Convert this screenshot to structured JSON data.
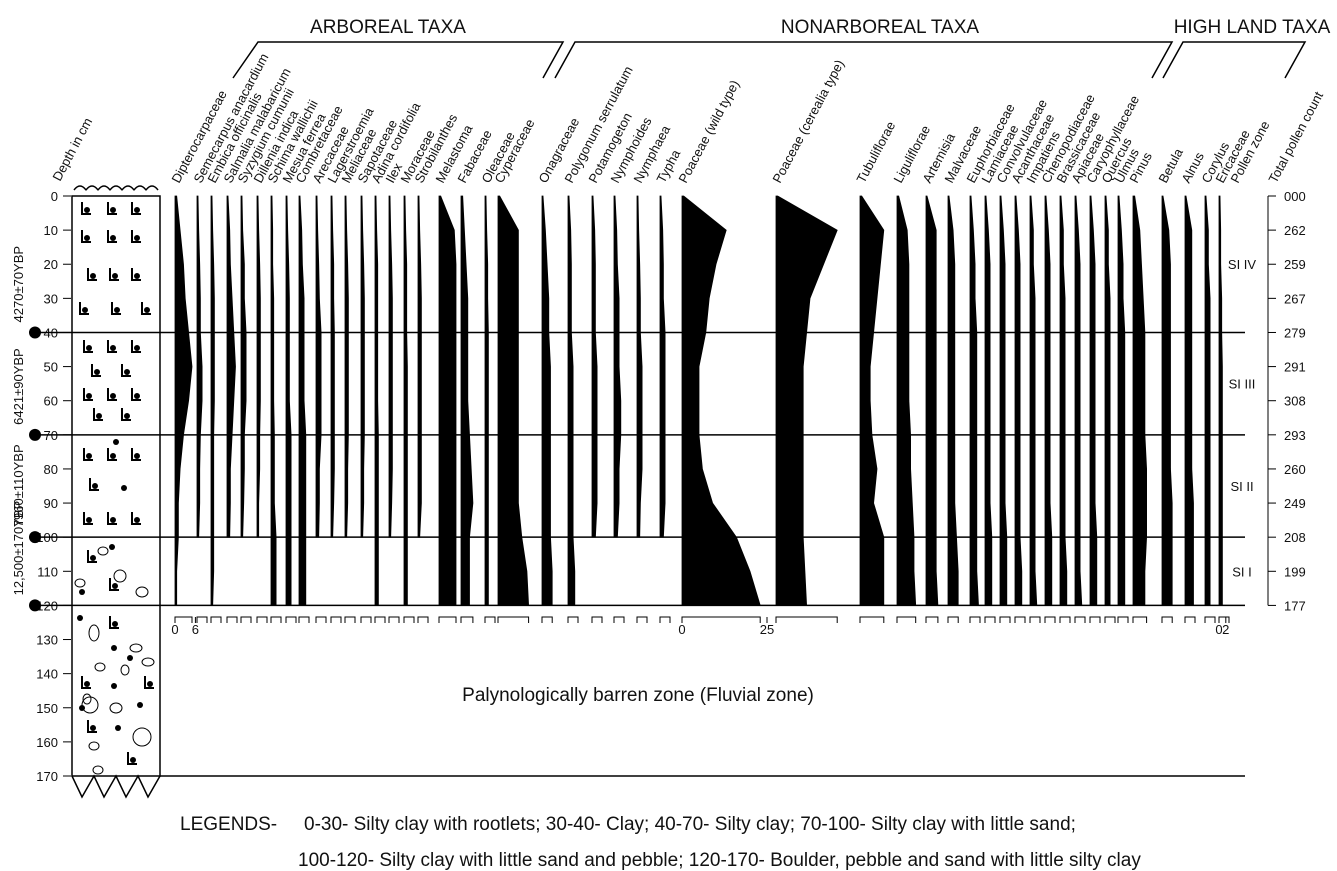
{
  "chart_data": {
    "type": "pollen",
    "y_label": "Depth in cm",
    "ylim": [
      0,
      170
    ],
    "yticks": [
      0,
      10,
      20,
      30,
      40,
      50,
      60,
      70,
      80,
      90,
      100,
      110,
      120,
      130,
      140,
      150,
      160,
      170
    ],
    "depths": [
      0,
      10,
      20,
      30,
      40,
      50,
      60,
      70,
      80,
      90,
      100,
      110,
      120
    ],
    "color": "#000000",
    "groups": [
      {
        "label": "ARBOREAL TAXA"
      },
      {
        "label": "NONARBOREAL TAXA"
      },
      {
        "label": "HIGH LAND TAXA"
      }
    ],
    "series": [
      {
        "name": "Dipterocarpaceae",
        "values": [
          0.5,
          1.5,
          2.5,
          3,
          4,
          5,
          4,
          2.5,
          1.5,
          1,
          1,
          0.5,
          0.5
        ],
        "scale_ticks": [
          0,
          6
        ]
      },
      {
        "name": "Semecarpus anacardium",
        "values": [
          0.3,
          0.5,
          0.8,
          1,
          1,
          1.5,
          1.5,
          1,
          0.8,
          0.8,
          0.5,
          null,
          null
        ]
      },
      {
        "name": "Embica officinalis",
        "values": [
          0.3,
          0.5,
          0.8,
          1,
          1,
          1,
          1,
          0.8,
          0.8,
          0.8,
          0.8,
          0.8,
          0.5
        ]
      },
      {
        "name": "Salmalia malabaricum",
        "values": [
          0.3,
          0.8,
          1,
          1.5,
          2,
          2.5,
          2,
          1.5,
          1,
          1,
          0.8,
          null,
          null
        ]
      },
      {
        "name": "Syzygium cumunii",
        "values": [
          0.3,
          0.5,
          1,
          1,
          1.5,
          1.5,
          1.5,
          1,
          1,
          0.8,
          0.5,
          null,
          null
        ]
      },
      {
        "name": "Dillenia indica",
        "values": [
          0.3,
          0.5,
          0.8,
          1,
          1,
          1,
          1,
          0.8,
          0.8,
          0.5,
          0.5,
          null,
          null
        ]
      },
      {
        "name": "Schima wallichii",
        "values": [
          0.3,
          0.5,
          0.5,
          0.8,
          0.8,
          0.8,
          0.8,
          1,
          1,
          1,
          1.5,
          1.5,
          1.5
        ]
      },
      {
        "name": "Mesua ferrea",
        "values": [
          0.3,
          0.5,
          0.8,
          1,
          1,
          1,
          1,
          1.5,
          1.5,
          1.5,
          1.5,
          1.5,
          1.5
        ]
      },
      {
        "name": "Combretaceae",
        "values": [
          0.3,
          0.8,
          1,
          1.5,
          1.5,
          1.5,
          1.5,
          2,
          2,
          2,
          2,
          2,
          2
        ]
      },
      {
        "name": "Arecaceae",
        "values": [
          0.3,
          0.5,
          0.8,
          1,
          1.5,
          1.5,
          1.5,
          1.5,
          1,
          1,
          0.8,
          null,
          null
        ]
      },
      {
        "name": "Lagerstroemia",
        "values": [
          0.3,
          0.5,
          0.8,
          0.8,
          1,
          1,
          1,
          1,
          1,
          0.8,
          0.5,
          null,
          null
        ]
      },
      {
        "name": "Meliaceae",
        "values": [
          0.3,
          0.5,
          0.8,
          1,
          1,
          1,
          1,
          1,
          0.8,
          0.8,
          0.5,
          null,
          null
        ]
      },
      {
        "name": "Sapotaceae",
        "values": [
          0.3,
          0.5,
          0.8,
          1,
          1,
          1,
          1,
          1,
          0.8,
          0.8,
          0.5,
          null,
          null
        ]
      },
      {
        "name": "Adina cordifolia",
        "values": [
          0.3,
          0.5,
          0.8,
          0.8,
          0.8,
          0.8,
          0.8,
          1,
          1,
          1,
          1,
          1,
          1
        ]
      },
      {
        "name": "Ilex",
        "values": [
          0.3,
          0.5,
          0.8,
          1,
          1,
          1,
          1,
          1,
          1,
          0.8,
          0.5,
          null,
          null
        ]
      },
      {
        "name": "Moraceae",
        "values": [
          0.3,
          0.5,
          0.8,
          0.8,
          0.8,
          1,
          1,
          1,
          1,
          1,
          1,
          1,
          1
        ]
      },
      {
        "name": "Strobilanthes",
        "values": [
          0.3,
          0.5,
          0.8,
          1,
          1,
          1,
          1,
          1,
          1,
          1,
          0.5,
          null,
          null
        ]
      },
      {
        "name": "Melastoma",
        "values": [
          0.5,
          4.5,
          5,
          5,
          5,
          5,
          5,
          5,
          5,
          5,
          5,
          5,
          5
        ]
      },
      {
        "name": "Fabaceae",
        "values": [
          0.5,
          1,
          1.5,
          2,
          2,
          2,
          2,
          2.5,
          3,
          3.5,
          2.5,
          2.5,
          2.5
        ]
      },
      {
        "name": "Oleaceae",
        "values": [
          0.3,
          0.5,
          0.8,
          0.8,
          1,
          1,
          1,
          1,
          1,
          1,
          1,
          1,
          1
        ]
      },
      {
        "name": "Cyperaceae",
        "values": [
          0.5,
          6,
          6,
          6,
          6,
          6,
          6,
          6,
          6,
          6,
          7,
          8.5,
          9
        ]
      },
      {
        "name": "Onagraceae",
        "values": [
          0.3,
          1,
          1.5,
          2,
          2,
          2.5,
          2.5,
          2.5,
          2.5,
          2.5,
          2.5,
          3,
          3
        ]
      },
      {
        "name": "Polygonum serrulatum",
        "values": [
          0.3,
          0.8,
          1,
          1,
          1,
          1.5,
          1.5,
          1.5,
          1.5,
          1.5,
          1.5,
          2,
          2
        ]
      },
      {
        "name": "Potamogeton",
        "values": [
          0.3,
          0.8,
          1,
          1,
          1,
          1.5,
          1.5,
          1.5,
          1.5,
          1.5,
          1,
          null,
          null
        ]
      },
      {
        "name": "Nymphoides",
        "values": [
          0.3,
          0.8,
          1,
          1.5,
          1.5,
          1.5,
          2,
          2,
          1.5,
          1.5,
          1,
          null,
          null
        ]
      },
      {
        "name": "Nymphaea",
        "values": [
          0.3,
          0.5,
          0.8,
          1,
          1,
          1.5,
          1.5,
          1.5,
          1.5,
          1,
          0.8,
          null,
          null
        ]
      },
      {
        "name": "Typha",
        "values": [
          0.3,
          0.8,
          1,
          1,
          1.5,
          1.5,
          1.5,
          1.5,
          1.5,
          1.5,
          1,
          null,
          null
        ]
      },
      {
        "name": "Poaceae (wild type)",
        "values": [
          0.5,
          13,
          10,
          8,
          7,
          5,
          5,
          5,
          6,
          9,
          16,
          20,
          23
        ],
        "scale_ticks": [
          0,
          25
        ]
      },
      {
        "name": "Poaceae (cerealia type)",
        "values": [
          0.5,
          18,
          14,
          10,
          9,
          8,
          8,
          8,
          8,
          8,
          8,
          8.5,
          9
        ]
      },
      {
        "name": "Tubuliflorae",
        "values": [
          0.5,
          7,
          6,
          5,
          4,
          3,
          3,
          3.5,
          5,
          4,
          7,
          7,
          7
        ]
      },
      {
        "name": "Liguliflorae",
        "values": [
          0.5,
          3,
          3.5,
          3.5,
          3.5,
          3.5,
          3.5,
          4,
          4,
          4.5,
          5,
          5,
          5.5
        ]
      },
      {
        "name": "Artemisia",
        "values": [
          0.3,
          3,
          3,
          3,
          3,
          3,
          3,
          3,
          3,
          3,
          3,
          3,
          3.5
        ]
      },
      {
        "name": "Malvaceae",
        "values": [
          0.3,
          1.5,
          2,
          2,
          2,
          2,
          2,
          2,
          2,
          2,
          2.5,
          3,
          3
        ]
      },
      {
        "name": "Euphorbiaceae",
        "values": [
          0.3,
          1,
          1.5,
          1.5,
          2,
          2,
          2,
          2,
          2,
          2,
          2,
          2,
          2.5
        ]
      },
      {
        "name": "Lamiaceae",
        "values": [
          0.3,
          1,
          1.5,
          1.5,
          1.5,
          1.5,
          1.5,
          1.5,
          1.5,
          1.5,
          2,
          2,
          2
        ]
      },
      {
        "name": "Convolvulaceae",
        "values": [
          0.3,
          1,
          1.5,
          1.5,
          1.5,
          1.5,
          1.5,
          1.5,
          1.5,
          1.5,
          2,
          2,
          2
        ]
      },
      {
        "name": "Acanthaceae",
        "values": [
          0.3,
          1,
          1.5,
          1.5,
          1.5,
          1.5,
          1.5,
          1.5,
          1.5,
          1.5,
          1.5,
          2,
          2
        ]
      },
      {
        "name": "Impatiens",
        "values": [
          0.3,
          1,
          1,
          1.5,
          1.5,
          1.5,
          1.5,
          1.5,
          1.5,
          1.5,
          1.5,
          1.5,
          2
        ]
      },
      {
        "name": "Chenopodiaceae",
        "values": [
          0.3,
          1,
          1.5,
          1.5,
          1.5,
          1.5,
          1.5,
          1.5,
          1.5,
          1.5,
          2,
          2,
          2
        ]
      },
      {
        "name": "Brassicaceae",
        "values": [
          0.3,
          1,
          1,
          1.5,
          1.5,
          1.5,
          1.5,
          1.5,
          1.5,
          1.5,
          1.5,
          2,
          2
        ]
      },
      {
        "name": "Apiaceae",
        "values": [
          0.3,
          1,
          1.5,
          1.5,
          1.5,
          1.5,
          1.5,
          1.5,
          1.5,
          1.5,
          1.5,
          1.5,
          2
        ]
      },
      {
        "name": "Caryophyllaceae",
        "values": [
          0.3,
          1,
          1.5,
          1.5,
          1.5,
          1.5,
          1.5,
          1.5,
          1.5,
          1.5,
          2,
          2,
          2
        ]
      },
      {
        "name": "Quercus",
        "values": [
          0.3,
          1,
          1,
          1.5,
          1.5,
          1.5,
          1.5,
          1.5,
          1.5,
          1.5,
          1.5,
          1.5,
          1.5
        ]
      },
      {
        "name": "Ulmus",
        "values": [
          0.3,
          1,
          1.5,
          1.5,
          2,
          2,
          2,
          2,
          2,
          2,
          2,
          2,
          2
        ]
      },
      {
        "name": "Pinus",
        "values": [
          0.5,
          2,
          2.5,
          3,
          3.5,
          3.5,
          3.5,
          3.5,
          4,
          4,
          4,
          3.5,
          3.5
        ]
      },
      {
        "name": "Betula",
        "values": [
          0.3,
          2,
          2.5,
          2.5,
          2.5,
          2.5,
          2.5,
          2.5,
          2.5,
          3,
          3,
          3,
          3
        ]
      },
      {
        "name": "Alnus",
        "values": [
          0.3,
          2,
          2,
          2,
          2,
          2,
          2,
          2,
          2,
          2.5,
          2.5,
          2.5,
          2.5
        ]
      },
      {
        "name": "Corylus",
        "values": [
          0.3,
          1,
          1,
          1.5,
          1.5,
          1.5,
          1.5,
          1.5,
          1.5,
          1.5,
          1.5,
          1.5,
          1.5
        ]
      },
      {
        "name": "Ericaceae",
        "values": [
          0.3,
          0.5,
          0.5,
          0.8,
          0.8,
          1,
          1,
          1,
          1,
          1,
          1,
          1,
          1
        ],
        "scale_ticks": [
          0,
          2
        ]
      }
    ],
    "zone_label": "Pollen zone",
    "zones": [
      {
        "label": "SI IV",
        "from": 0,
        "to": 40
      },
      {
        "label": "SI III",
        "from": 40,
        "to": 70
      },
      {
        "label": "SI II",
        "from": 70,
        "to": 100
      },
      {
        "label": "SI I",
        "from": 100,
        "to": 120
      }
    ],
    "count_label": "Total pollen count",
    "counts": [
      "000",
      "262",
      "259",
      "267",
      "279",
      "291",
      "308",
      "293",
      "260",
      "249",
      "208",
      "199",
      "177"
    ],
    "ages": [
      {
        "label": "4270±70YBP",
        "depth": 40
      },
      {
        "label": "6421±90YBP",
        "depth": 70
      },
      {
        "label": "7960±110YBP",
        "depth": 100
      },
      {
        "label": "12,500±170YBP",
        "depth": 120
      }
    ],
    "barren_note": "Palynologically barren zone (Fluvial zone)",
    "legend_title": "LEGENDS-",
    "legend_lines": [
      "0-30- Silty clay with rootlets; 30-40- Clay; 40-70- Silty clay; 70-100- Silty clay with little sand;",
      "100-120- Silty clay with little sand and pebble; 120-170- Boulder, pebble and sand with little silty clay"
    ]
  }
}
